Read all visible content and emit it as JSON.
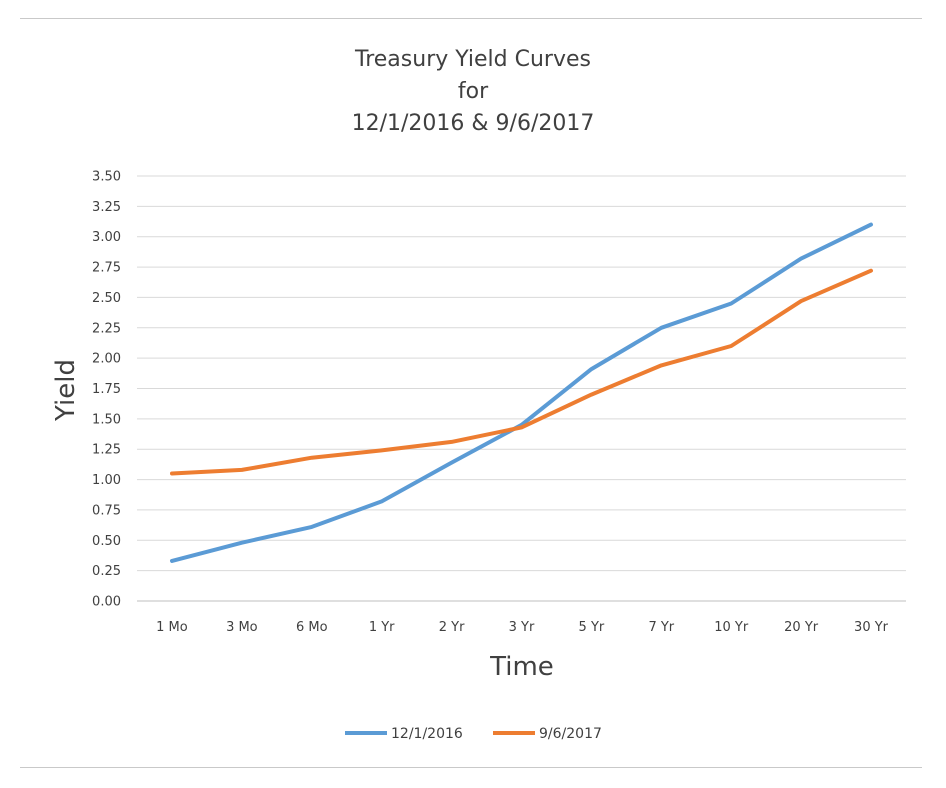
{
  "chart_data": {
    "type": "line",
    "title_lines": [
      "Treasury Yield Curves",
      "for",
      "12/1/2016 & 9/6/2017"
    ],
    "xlabel": "Time",
    "ylabel": "Yield",
    "categories": [
      "1 Mo",
      "3 Mo",
      "6 Mo",
      "1 Yr",
      "2 Yr",
      "3 Yr",
      "5 Yr",
      "7 Yr",
      "10 Yr",
      "20 Yr",
      "30 Yr"
    ],
    "ylim": [
      0,
      3.5
    ],
    "yticks": [
      "0.00",
      "0.25",
      "0.50",
      "0.75",
      "1.00",
      "1.25",
      "1.50",
      "1.75",
      "2.00",
      "2.25",
      "2.50",
      "2.75",
      "3.00",
      "3.25",
      "3.50"
    ],
    "grid": true,
    "legend_position": "bottom",
    "series": [
      {
        "name": "12/1/2016",
        "color": "#5b9bd5",
        "values": [
          0.33,
          0.48,
          0.61,
          0.82,
          1.14,
          1.45,
          1.91,
          2.25,
          2.45,
          2.82,
          3.1
        ]
      },
      {
        "name": "9/6/2017",
        "color": "#ed7d31",
        "values": [
          1.05,
          1.08,
          1.18,
          1.24,
          1.31,
          1.43,
          1.7,
          1.94,
          2.1,
          2.47,
          2.72
        ]
      }
    ]
  }
}
